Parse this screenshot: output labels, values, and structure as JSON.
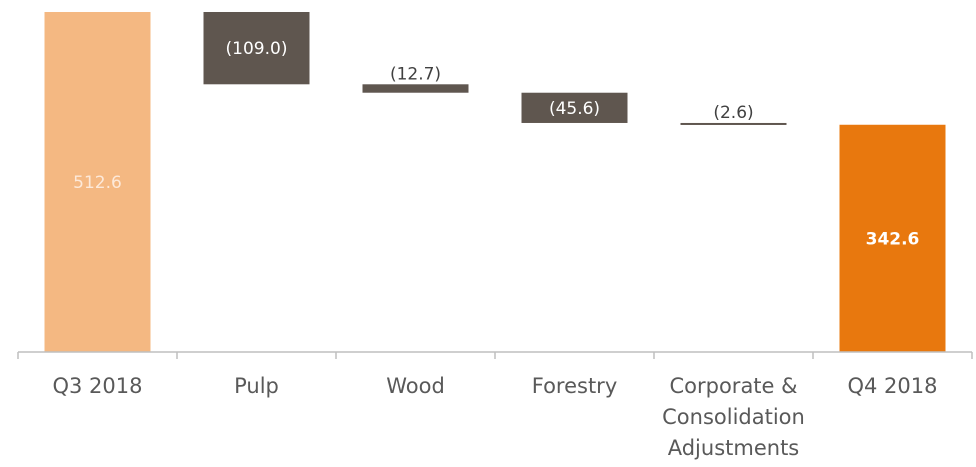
{
  "chart_data": {
    "type": "bar",
    "subtype": "waterfall",
    "title": "",
    "xlabel": "",
    "ylabel": "",
    "categories": [
      "Q3 2018",
      "Pulp",
      "Wood",
      "Forestry",
      "Corporate & Consolidation Adjustments",
      "Q4 2018"
    ],
    "category_label_lines": [
      [
        "Q3 2018"
      ],
      [
        "Pulp"
      ],
      [
        "Wood"
      ],
      [
        "Forestry"
      ],
      [
        "Corporate &",
        "Consolidation",
        "Adjustments"
      ],
      [
        "Q4 2018"
      ]
    ],
    "values": [
      512.6,
      -109.0,
      -12.7,
      -45.6,
      -2.6,
      342.6
    ],
    "value_labels": [
      "512.6",
      "(109.0)",
      "(12.7)",
      "(45.6)",
      "(2.6)",
      "342.6"
    ],
    "bar_kinds": [
      "total",
      "delta",
      "delta",
      "delta",
      "delta",
      "total"
    ],
    "ylim": [
      0,
      512.6
    ],
    "grid": false,
    "legend": "none",
    "colors": {
      "start_total": "#F4B882",
      "end_total": "#E8780E",
      "decrease": "#5F564F",
      "axis": "#BFBFBF",
      "category_text": "#595959",
      "start_label_text": "#FDE9D9",
      "end_label_text": "#FFFFFF",
      "delta_label_on_bar": "#FFFFFF",
      "delta_label_above": "#404040"
    }
  }
}
